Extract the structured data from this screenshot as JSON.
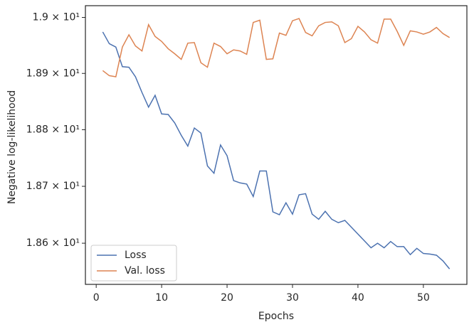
{
  "chart_data": {
    "type": "line",
    "xlabel": "Epochs",
    "ylabel": "Negative log-likelihood",
    "x": [
      1,
      2,
      3,
      4,
      5,
      6,
      7,
      8,
      9,
      10,
      11,
      12,
      13,
      14,
      15,
      16,
      17,
      18,
      19,
      20,
      21,
      22,
      23,
      24,
      25,
      26,
      27,
      28,
      29,
      30,
      31,
      32,
      33,
      34,
      35,
      36,
      37,
      38,
      39,
      40,
      41,
      42,
      43,
      44,
      45,
      46,
      47,
      48,
      49,
      50,
      51,
      52,
      53,
      54
    ],
    "series": [
      {
        "name": "Loss",
        "color": "#4c72b0",
        "values": [
          18.974,
          18.953,
          18.947,
          18.912,
          18.911,
          18.894,
          18.866,
          18.84,
          18.861,
          18.828,
          18.827,
          18.812,
          18.79,
          18.771,
          18.803,
          18.794,
          18.736,
          18.723,
          18.773,
          18.754,
          18.71,
          18.706,
          18.704,
          18.682,
          18.727,
          18.727,
          18.655,
          18.65,
          18.671,
          18.651,
          18.685,
          18.687,
          18.651,
          18.642,
          18.656,
          18.642,
          18.636,
          18.64,
          18.628,
          18.616,
          18.604,
          18.592,
          18.6,
          18.592,
          18.603,
          18.594,
          18.594,
          18.58,
          18.591,
          18.582,
          18.581,
          18.579,
          18.569,
          18.555
        ]
      },
      {
        "name": "Val. loss",
        "color": "#dd8452",
        "values": [
          18.905,
          18.896,
          18.894,
          18.947,
          18.969,
          18.949,
          18.94,
          18.987,
          18.966,
          18.957,
          18.944,
          18.935,
          18.925,
          18.954,
          18.955,
          18.919,
          18.911,
          18.954,
          18.948,
          18.935,
          18.942,
          18.94,
          18.934,
          18.991,
          18.995,
          18.925,
          18.926,
          18.972,
          18.968,
          18.994,
          18.998,
          18.973,
          18.967,
          18.985,
          18.991,
          18.992,
          18.985,
          18.955,
          18.962,
          18.984,
          18.974,
          18.96,
          18.954,
          18.997,
          18.997,
          18.975,
          18.95,
          18.976,
          18.974,
          18.97,
          18.974,
          18.982,
          18.971,
          18.964
        ]
      }
    ],
    "xlim": [
      -1.65,
      56.65
    ],
    "xticks": [
      0,
      10,
      20,
      30,
      40,
      50
    ],
    "ylim": [
      18.528,
      19.021
    ],
    "log_y": true,
    "yticks": [
      {
        "value": 18.6,
        "label": "1.86 × 10¹"
      },
      {
        "value": 18.7,
        "label": "1.87 × 10¹"
      },
      {
        "value": 18.8,
        "label": "1.88 × 10¹"
      },
      {
        "value": 18.9,
        "label": "1.89 × 10¹"
      },
      {
        "value": 19.0,
        "label": "1.9 × 10¹"
      }
    ],
    "legend": "lower left"
  }
}
